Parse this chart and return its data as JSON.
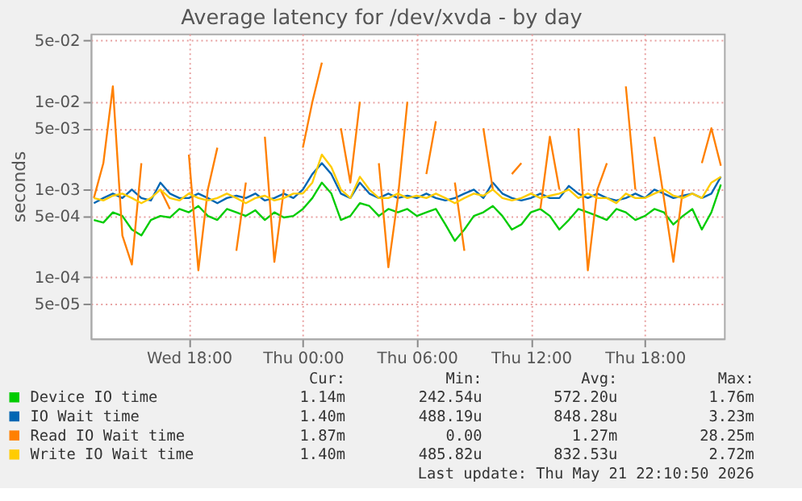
{
  "chart_data": {
    "type": "line",
    "title": "Average latency for /dev/xvda - by day",
    "ylabel": "seconds",
    "x": [
      "2026-05-20T13:00",
      "2026-05-20T13:30",
      "2026-05-20T14:00",
      "2026-05-20T14:30",
      "2026-05-20T15:00",
      "2026-05-20T15:30",
      "2026-05-20T16:00",
      "2026-05-20T16:30",
      "2026-05-20T17:00",
      "2026-05-20T17:30",
      "2026-05-20T18:00",
      "2026-05-20T18:30",
      "2026-05-20T19:00",
      "2026-05-20T19:30",
      "2026-05-20T20:00",
      "2026-05-20T20:30",
      "2026-05-20T21:00",
      "2026-05-20T21:30",
      "2026-05-20T22:00",
      "2026-05-20T22:30",
      "2026-05-20T23:00",
      "2026-05-20T23:30",
      "2026-05-21T00:00",
      "2026-05-21T00:30",
      "2026-05-21T01:00",
      "2026-05-21T01:30",
      "2026-05-21T02:00",
      "2026-05-21T02:30",
      "2026-05-21T03:00",
      "2026-05-21T03:30",
      "2026-05-21T04:00",
      "2026-05-21T04:30",
      "2026-05-21T05:00",
      "2026-05-21T05:30",
      "2026-05-21T06:00",
      "2026-05-21T06:30",
      "2026-05-21T07:00",
      "2026-05-21T07:30",
      "2026-05-21T08:00",
      "2026-05-21T08:30",
      "2026-05-21T09:00",
      "2026-05-21T09:30",
      "2026-05-21T10:00",
      "2026-05-21T10:30",
      "2026-05-21T11:00",
      "2026-05-21T11:30",
      "2026-05-21T12:00",
      "2026-05-21T12:30",
      "2026-05-21T13:00",
      "2026-05-21T13:30",
      "2026-05-21T14:00",
      "2026-05-21T14:30",
      "2026-05-21T15:00",
      "2026-05-21T15:30",
      "2026-05-21T16:00",
      "2026-05-21T16:30",
      "2026-05-21T17:00",
      "2026-05-21T17:30",
      "2026-05-21T18:00",
      "2026-05-21T18:30",
      "2026-05-21T19:00",
      "2026-05-21T19:30",
      "2026-05-21T20:00",
      "2026-05-21T20:30",
      "2026-05-21T21:00",
      "2026-05-21T21:30",
      "2026-05-21T22:00"
    ],
    "series": [
      {
        "name": "Device IO time",
        "color": "#00cc00",
        "values": [
          0.00045,
          0.00042,
          0.00055,
          0.0005,
          0.00035,
          0.0003,
          0.00045,
          0.0005,
          0.00048,
          0.0006,
          0.00055,
          0.00065,
          0.0005,
          0.00045,
          0.0006,
          0.00055,
          0.0005,
          0.00058,
          0.00045,
          0.00055,
          0.00048,
          0.0005,
          0.0006,
          0.0008,
          0.0012,
          0.0009,
          0.00045,
          0.0005,
          0.0007,
          0.00065,
          0.0005,
          0.0006,
          0.00055,
          0.0006,
          0.0005,
          0.00055,
          0.0006,
          0.0004,
          0.00026,
          0.00035,
          0.0005,
          0.00055,
          0.00065,
          0.0005,
          0.00035,
          0.0004,
          0.00055,
          0.0006,
          0.0005,
          0.00035,
          0.00045,
          0.0006,
          0.00055,
          0.0005,
          0.00045,
          0.0006,
          0.00055,
          0.00045,
          0.0005,
          0.0006,
          0.00055,
          0.0004,
          0.0005,
          0.0006,
          0.00035,
          0.00055,
          0.00114
        ]
      },
      {
        "name": "IO Wait time",
        "color": "#0066b3",
        "values": [
          0.0007,
          0.0008,
          0.0009,
          0.0008,
          0.001,
          0.0008,
          0.00075,
          0.0012,
          0.0009,
          0.0008,
          0.0008,
          0.0009,
          0.0008,
          0.0007,
          0.0008,
          0.00085,
          0.0008,
          0.0009,
          0.00075,
          0.0008,
          0.0009,
          0.0008,
          0.001,
          0.0015,
          0.002,
          0.0015,
          0.0009,
          0.0008,
          0.0012,
          0.0009,
          0.0008,
          0.0009,
          0.0008,
          0.00085,
          0.0008,
          0.0009,
          0.0008,
          0.00075,
          0.0008,
          0.0009,
          0.001,
          0.0008,
          0.0012,
          0.0009,
          0.0008,
          0.00075,
          0.0008,
          0.0009,
          0.0008,
          0.0008,
          0.0011,
          0.0009,
          0.0008,
          0.0009,
          0.0008,
          0.00075,
          0.0008,
          0.0009,
          0.0008,
          0.001,
          0.0009,
          0.0008,
          0.00085,
          0.0009,
          0.0008,
          0.0009,
          0.0014
        ]
      },
      {
        "name": "Read IO Wait time",
        "color": "#ff8000",
        "values": [
          0.0008,
          0.002,
          0.015,
          0.0003,
          0.00014,
          0.002,
          null,
          0.001,
          0.0006,
          null,
          0.0025,
          0.00012,
          0.001,
          0.003,
          null,
          0.0002,
          0.0012,
          null,
          0.004,
          0.00015,
          0.001,
          null,
          0.003,
          0.01,
          0.028,
          null,
          0.005,
          0.0012,
          0.01,
          null,
          0.002,
          0.00013,
          0.0008,
          0.01,
          null,
          0.0015,
          0.006,
          null,
          0.0012,
          0.0002,
          null,
          0.005,
          0.001,
          null,
          0.0015,
          0.002,
          null,
          0.0006,
          0.004,
          0.001,
          null,
          0.005,
          0.00012,
          0.001,
          0.002,
          null,
          0.015,
          0.001,
          null,
          0.004,
          0.0008,
          0.00015,
          0.001,
          null,
          0.002,
          0.005,
          0.00187
        ]
      },
      {
        "name": "Write IO Wait time",
        "color": "#ffcc00",
        "values": [
          0.0008,
          0.00075,
          0.00085,
          0.0009,
          0.0008,
          0.0007,
          0.0008,
          0.001,
          0.0008,
          0.00075,
          0.0009,
          0.0008,
          0.00075,
          0.0008,
          0.0009,
          0.0008,
          0.0007,
          0.0008,
          0.00085,
          0.00075,
          0.0008,
          0.0009,
          0.0009,
          0.0012,
          0.0025,
          0.0018,
          0.001,
          0.0008,
          0.0014,
          0.001,
          0.0008,
          0.0008,
          0.0009,
          0.0008,
          0.00085,
          0.0008,
          0.0009,
          0.0008,
          0.0007,
          0.0008,
          0.0009,
          0.00085,
          0.001,
          0.0008,
          0.00075,
          0.0008,
          0.0009,
          0.0008,
          0.00085,
          0.0009,
          0.001,
          0.0008,
          0.0009,
          0.0008,
          0.0008,
          0.0007,
          0.0009,
          0.0008,
          0.0008,
          0.0009,
          0.001,
          0.00085,
          0.0008,
          0.0009,
          0.0008,
          0.0012,
          0.0014
        ]
      }
    ],
    "xlim": [
      "2026-05-20T12:50",
      "2026-05-21T22:10"
    ],
    "xticks": [
      {
        "value": "2026-05-20T18:00",
        "label": "Wed 18:00"
      },
      {
        "value": "2026-05-21T00:00",
        "label": "Thu 00:00"
      },
      {
        "value": "2026-05-21T06:00",
        "label": "Thu 06:00"
      },
      {
        "value": "2026-05-21T12:00",
        "label": "Thu 12:00"
      },
      {
        "value": "2026-05-21T18:00",
        "label": "Thu 18:00"
      }
    ],
    "ylim": [
      2e-05,
      0.06
    ],
    "yticks": [
      {
        "value": 5e-05,
        "label": "5e-05"
      },
      {
        "value": 0.0001,
        "label": "1e-04"
      },
      {
        "value": 0.0005,
        "label": "5e-04"
      },
      {
        "value": 0.001,
        "label": "1e-03"
      },
      {
        "value": 0.005,
        "label": "5e-03"
      },
      {
        "value": 0.01,
        "label": "1e-02"
      },
      {
        "value": 0.05,
        "label": "5e-02"
      }
    ],
    "log": "y",
    "grid": true,
    "legend": "bottom",
    "marker": "none",
    "line_style": "solid",
    "annotations": [
      "Cur:",
      "Min:",
      "Avg:",
      "Max:",
      "1.14m",
      "242.54u",
      "572.20u",
      "1.76m",
      "1.40m",
      "488.19u",
      "848.28u",
      "3.23m",
      "1.87m",
      "0.00",
      "1.27m",
      "28.25m",
      "1.40m",
      "485.82u",
      "832.53u",
      "2.72m",
      "Last update: Thu May 21 22:10:50 2026"
    ]
  }
}
